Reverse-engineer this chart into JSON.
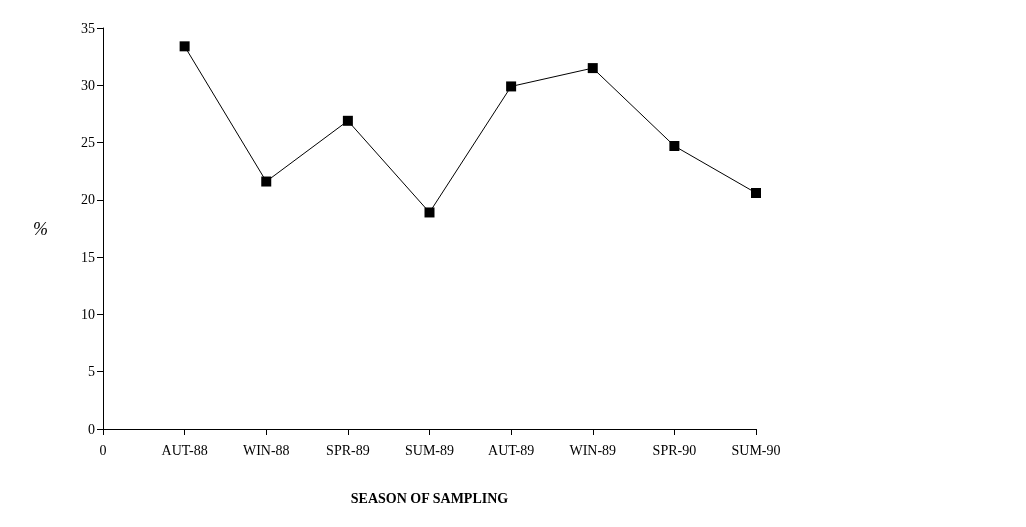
{
  "chart_data": {
    "type": "line",
    "xlabel": "SEASON OF SAMPLING",
    "ylabel": "%",
    "categories": [
      "0",
      "AUT-88",
      "WIN-88",
      "SPR-89",
      "SUM-89",
      "AUT-89",
      "WIN-89",
      "SPR-90",
      "SUM-90"
    ],
    "series": [
      {
        "color": "#000000",
        "values": [
          null,
          33.4,
          21.6,
          26.9,
          18.9,
          29.9,
          31.5,
          24.7,
          20.6
        ]
      }
    ],
    "ylim": [
      0,
      35
    ],
    "yticks": [
      0,
      5,
      10,
      15,
      20,
      25,
      30,
      35
    ],
    "grid": false,
    "marker": "square",
    "line_style": "solid"
  }
}
